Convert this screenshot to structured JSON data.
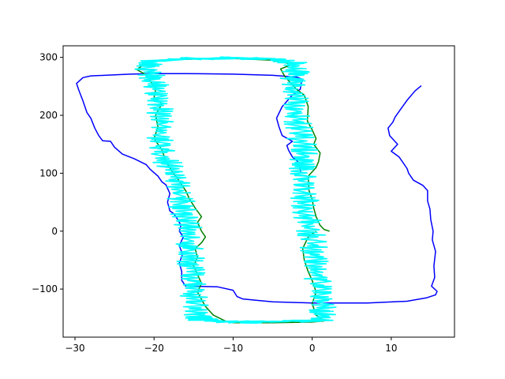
{
  "chart_data": {
    "type": "line",
    "title": "",
    "xlabel": "",
    "ylabel": "",
    "xlim": [
      -31.5,
      18.0
    ],
    "ylim": [
      -183,
      320
    ],
    "grid": false,
    "legend": "none",
    "x_ticks": [
      -30,
      -20,
      -10,
      0,
      10
    ],
    "y_ticks": [
      -100,
      0,
      100,
      200,
      300
    ],
    "x_tick_labels": [
      "−30",
      "−20",
      "−10",
      "0",
      "10"
    ],
    "y_tick_labels": [
      "−100",
      "0",
      "100",
      "200",
      "300"
    ],
    "series": [
      {
        "color": "#0000ff",
        "noise": 0,
        "points": [
          [
            13.8,
            251
          ],
          [
            13.0,
            242
          ],
          [
            12.0,
            226
          ],
          [
            11.0,
            207
          ],
          [
            10.5,
            197
          ],
          [
            10.2,
            188
          ],
          [
            9.6,
            178
          ],
          [
            9.8,
            165
          ],
          [
            10.8,
            150
          ],
          [
            10.0,
            138
          ],
          [
            11.0,
            128
          ],
          [
            12.0,
            108
          ],
          [
            12.2,
            100
          ],
          [
            12.8,
            88
          ],
          [
            14.0,
            79
          ],
          [
            14.6,
            70
          ],
          [
            14.6,
            52
          ],
          [
            14.9,
            38
          ],
          [
            15.0,
            20
          ],
          [
            15.3,
            0
          ],
          [
            15.2,
            -15
          ],
          [
            15.6,
            -35
          ],
          [
            15.4,
            -60
          ],
          [
            15.5,
            -80
          ],
          [
            15.1,
            -95
          ],
          [
            15.8,
            -104
          ],
          [
            15.6,
            -110
          ],
          [
            14.5,
            -115
          ],
          [
            12.0,
            -121
          ],
          [
            7.0,
            -124
          ],
          [
            0.0,
            -124
          ],
          [
            -5.0,
            -122
          ],
          [
            -8.8,
            -117
          ],
          [
            -9.5,
            -113
          ],
          [
            -10.0,
            -102
          ],
          [
            -12.0,
            -96
          ],
          [
            -16.0,
            -95
          ],
          [
            -16.5,
            -85
          ],
          [
            -16.5,
            -70
          ],
          [
            -16.8,
            -55
          ],
          [
            -16.4,
            -40
          ],
          [
            -16.8,
            -25
          ],
          [
            -16.3,
            -10
          ],
          [
            -16.8,
            0
          ],
          [
            -16.6,
            10
          ],
          [
            -17.0,
            20
          ],
          [
            -17.5,
            30
          ],
          [
            -18.0,
            35
          ],
          [
            -18.3,
            50
          ],
          [
            -18.0,
            65
          ],
          [
            -18.5,
            80
          ],
          [
            -19.0,
            85
          ],
          [
            -19.5,
            95
          ],
          [
            -20.5,
            107
          ],
          [
            -21.0,
            115
          ],
          [
            -22.5,
            125
          ],
          [
            -24.0,
            133
          ],
          [
            -25.0,
            145
          ],
          [
            -25.5,
            155
          ],
          [
            -26.5,
            156
          ],
          [
            -27.0,
            165
          ],
          [
            -27.5,
            178
          ],
          [
            -28.0,
            195
          ],
          [
            -28.5,
            205
          ],
          [
            -29.0,
            225
          ],
          [
            -29.5,
            243
          ],
          [
            -29.8,
            255
          ],
          [
            -29.0,
            265
          ],
          [
            -28.0,
            268
          ],
          [
            -23.0,
            271
          ],
          [
            -20.0,
            272
          ],
          [
            -16.0,
            272
          ],
          [
            -10.0,
            271
          ],
          [
            -5.0,
            269
          ],
          [
            -2.0,
            266
          ],
          [
            -1.2,
            262
          ],
          [
            -1.4,
            255
          ],
          [
            -1.5,
            245
          ],
          [
            -2.5,
            235
          ],
          [
            -3.8,
            215
          ],
          [
            -4.5,
            195
          ],
          [
            -4.2,
            180
          ],
          [
            -3.8,
            165
          ],
          [
            -2.5,
            155
          ],
          [
            -3.2,
            148
          ],
          [
            -3.0,
            140
          ],
          [
            -2.5,
            128
          ],
          [
            -1.8,
            120
          ],
          [
            -1.4,
            100
          ]
        ]
      },
      {
        "color": "#008000",
        "noise": 0,
        "points": [
          [
            2.2,
            0
          ],
          [
            1.5,
            3
          ],
          [
            1.0,
            10
          ],
          [
            0.5,
            25
          ],
          [
            0.2,
            40
          ],
          [
            0.0,
            55
          ],
          [
            -0.4,
            70
          ],
          [
            -0.5,
            95
          ],
          [
            0.5,
            110
          ],
          [
            0.8,
            120
          ],
          [
            1.0,
            135
          ],
          [
            0.2,
            150
          ],
          [
            0.5,
            160
          ],
          [
            0.0,
            175
          ],
          [
            -0.6,
            190
          ],
          [
            -0.5,
            215
          ],
          [
            -1.0,
            235
          ],
          [
            -2.0,
            245
          ],
          [
            -3.0,
            260
          ],
          [
            -3.5,
            268
          ],
          [
            -4.0,
            280
          ],
          [
            -2.5,
            288
          ],
          [
            -5.0,
            295
          ],
          [
            -10.0,
            298
          ],
          [
            -15.0,
            297
          ],
          [
            -19.5,
            295
          ],
          [
            -21.0,
            290
          ],
          [
            -22.2,
            279
          ],
          [
            -21.0,
            270
          ],
          [
            -20.5,
            260
          ],
          [
            -19.8,
            245
          ],
          [
            -20.0,
            230
          ],
          [
            -19.0,
            220
          ],
          [
            -19.8,
            200
          ],
          [
            -19.5,
            180
          ],
          [
            -20.0,
            160
          ],
          [
            -19.0,
            140
          ],
          [
            -18.5,
            120
          ],
          [
            -17.8,
            105
          ],
          [
            -17.0,
            90
          ],
          [
            -16.5,
            80
          ],
          [
            -16.0,
            70
          ],
          [
            -15.5,
            55
          ],
          [
            -14.8,
            40
          ],
          [
            -14.0,
            25
          ],
          [
            -14.5,
            15
          ],
          [
            -14.0,
            0
          ],
          [
            -13.5,
            -10
          ],
          [
            -14.0,
            -20
          ],
          [
            -14.8,
            -30
          ],
          [
            -14.5,
            -45
          ],
          [
            -15.0,
            -60
          ],
          [
            -14.5,
            -75
          ],
          [
            -14.0,
            -90
          ],
          [
            -14.5,
            -105
          ],
          [
            -14.0,
            -118
          ],
          [
            -13.5,
            -130
          ],
          [
            -12.5,
            -145
          ],
          [
            -11.0,
            -155
          ],
          [
            -10.0,
            -158
          ],
          [
            -5.0,
            -158
          ],
          [
            0.0,
            -157
          ],
          [
            1.5,
            -155
          ],
          [
            0.5,
            -145
          ],
          [
            0.0,
            -125
          ],
          [
            0.5,
            -105
          ],
          [
            0.0,
            -85
          ],
          [
            -0.5,
            -70
          ],
          [
            -1.0,
            -50
          ],
          [
            -1.2,
            -30
          ],
          [
            -0.5,
            -10
          ],
          [
            0.5,
            0
          ]
        ]
      },
      {
        "color": "#00ffff",
        "noise": 1.3,
        "points": [
          [
            1.3,
            -153
          ],
          [
            1.5,
            -130
          ],
          [
            0.9,
            -100
          ],
          [
            0.7,
            -70
          ],
          [
            0.4,
            -40
          ],
          [
            0.0,
            -10
          ],
          [
            -0.6,
            20
          ],
          [
            -0.9,
            50
          ],
          [
            -1.2,
            80
          ],
          [
            -1.3,
            110
          ],
          [
            -1.0,
            130
          ],
          [
            -1.4,
            160
          ],
          [
            -1.8,
            190
          ],
          [
            -2.2,
            220
          ],
          [
            -2.5,
            250
          ],
          [
            -2.0,
            275
          ],
          [
            -2.4,
            290
          ],
          [
            -5.0,
            297
          ],
          [
            -10.0,
            299
          ],
          [
            -15.0,
            298
          ],
          [
            -20.0,
            294
          ],
          [
            -21.0,
            285
          ],
          [
            -20.2,
            270
          ],
          [
            -19.6,
            250
          ],
          [
            -19.5,
            220
          ],
          [
            -19.0,
            190
          ],
          [
            -19.2,
            160
          ],
          [
            -18.8,
            130
          ],
          [
            -17.5,
            100
          ],
          [
            -16.8,
            70
          ],
          [
            -16.3,
            40
          ],
          [
            -15.8,
            10
          ],
          [
            -15.6,
            -20
          ],
          [
            -15.3,
            -50
          ],
          [
            -15.1,
            -80
          ],
          [
            -14.9,
            -110
          ],
          [
            -14.6,
            -140
          ],
          [
            -14.2,
            -153
          ],
          [
            -10.0,
            -157
          ],
          [
            -5.0,
            -156
          ],
          [
            0.0,
            -155
          ],
          [
            1.2,
            -153
          ]
        ]
      }
    ]
  }
}
